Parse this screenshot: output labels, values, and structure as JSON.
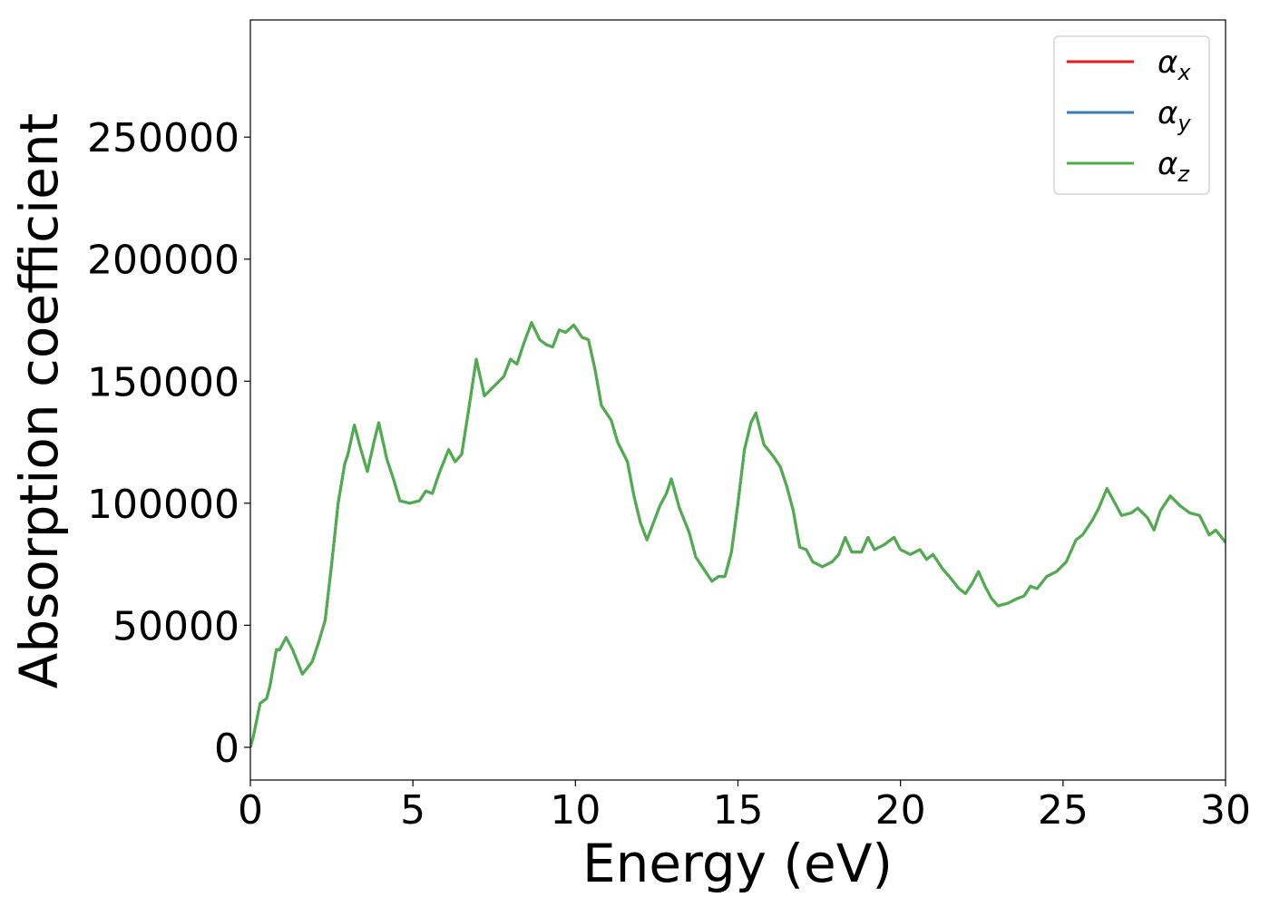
{
  "chart_data": {
    "type": "line",
    "xlabel": "Energy (eV)",
    "ylabel": "Absorption coefficient",
    "x": [
      0,
      0.1,
      0.3,
      0.5,
      0.6,
      0.8,
      0.9,
      1.1,
      1.3,
      1.6,
      1.9,
      2.1,
      2.3,
      2.5,
      2.7,
      2.9,
      3.0,
      3.2,
      3.4,
      3.6,
      3.8,
      3.95,
      4.2,
      4.4,
      4.6,
      4.9,
      5.2,
      5.4,
      5.6,
      5.8,
      6.1,
      6.3,
      6.5,
      6.7,
      6.95,
      7.2,
      7.5,
      7.8,
      8.0,
      8.2,
      8.4,
      8.65,
      8.9,
      9.1,
      9.3,
      9.5,
      9.7,
      9.95,
      10.2,
      10.4,
      10.6,
      10.8,
      11.1,
      11.3,
      11.6,
      11.8,
      12.0,
      12.2,
      12.4,
      12.6,
      12.8,
      12.95,
      13.2,
      13.5,
      13.7,
      13.95,
      14.2,
      14.4,
      14.6,
      14.8,
      15.0,
      15.2,
      15.4,
      15.55,
      15.8,
      16.1,
      16.3,
      16.5,
      16.7,
      16.9,
      17.1,
      17.3,
      17.6,
      17.9,
      18.1,
      18.3,
      18.5,
      18.8,
      19.0,
      19.2,
      19.5,
      19.8,
      20.0,
      20.3,
      20.6,
      20.8,
      21.0,
      21.3,
      21.5,
      21.8,
      22.0,
      22.2,
      22.4,
      22.6,
      22.8,
      23.0,
      23.3,
      23.6,
      23.8,
      24.0,
      24.2,
      24.5,
      24.8,
      25.1,
      25.4,
      25.6,
      25.9,
      26.1,
      26.35,
      26.6,
      26.8,
      27.1,
      27.3,
      27.6,
      27.8,
      28.0,
      28.3,
      28.6,
      28.9,
      29.2,
      29.5,
      29.7,
      30
    ],
    "series": [
      {
        "name": "αx",
        "color": "#e41a1c",
        "values": [
          0,
          5000,
          18000,
          20000,
          25000,
          40000,
          40000,
          45000,
          40000,
          30000,
          35000,
          43000,
          52000,
          75000,
          100000,
          116000,
          120000,
          132000,
          122000,
          113000,
          125000,
          133000,
          118000,
          110000,
          101000,
          100000,
          101000,
          105000,
          104000,
          112000,
          122000,
          117000,
          120000,
          137000,
          159000,
          144000,
          148000,
          152000,
          159000,
          157000,
          165000,
          174000,
          167000,
          165000,
          164000,
          171000,
          170000,
          173000,
          168000,
          167000,
          155000,
          140000,
          134000,
          125000,
          117000,
          103000,
          92000,
          85000,
          92000,
          99000,
          104000,
          110000,
          98000,
          88000,
          78000,
          73000,
          68000,
          70000,
          70000,
          80000,
          100000,
          122000,
          133000,
          137000,
          124000,
          119000,
          115000,
          107000,
          97000,
          82000,
          81000,
          76000,
          74000,
          76000,
          79000,
          86000,
          80000,
          80000,
          86000,
          81000,
          83000,
          86000,
          81000,
          79000,
          81000,
          77000,
          79000,
          73000,
          70000,
          65000,
          63000,
          67000,
          72000,
          66000,
          61000,
          58000,
          59000,
          61000,
          62000,
          66000,
          65000,
          70000,
          72000,
          76000,
          85000,
          87000,
          93000,
          98000,
          106000,
          100000,
          95000,
          96000,
          98000,
          94000,
          89000,
          97000,
          103000,
          99000,
          96000,
          95000,
          87000,
          89000,
          84000
        ]
      },
      {
        "name": "αy",
        "color": "#377eb8",
        "values": [
          0,
          5000,
          18000,
          20000,
          25000,
          40000,
          40000,
          45000,
          40000,
          30000,
          35000,
          43000,
          52000,
          75000,
          100000,
          116000,
          120000,
          132000,
          122000,
          113000,
          125000,
          133000,
          118000,
          110000,
          101000,
          100000,
          101000,
          105000,
          104000,
          112000,
          122000,
          117000,
          120000,
          137000,
          159000,
          144000,
          148000,
          152000,
          159000,
          157000,
          165000,
          174000,
          167000,
          165000,
          164000,
          171000,
          170000,
          173000,
          168000,
          167000,
          155000,
          140000,
          134000,
          125000,
          117000,
          103000,
          92000,
          85000,
          92000,
          99000,
          104000,
          110000,
          98000,
          88000,
          78000,
          73000,
          68000,
          70000,
          70000,
          80000,
          100000,
          122000,
          133000,
          137000,
          124000,
          119000,
          115000,
          107000,
          97000,
          82000,
          81000,
          76000,
          74000,
          76000,
          79000,
          86000,
          80000,
          80000,
          86000,
          81000,
          83000,
          86000,
          81000,
          79000,
          81000,
          77000,
          79000,
          73000,
          70000,
          65000,
          63000,
          67000,
          72000,
          66000,
          61000,
          58000,
          59000,
          61000,
          62000,
          66000,
          65000,
          70000,
          72000,
          76000,
          85000,
          87000,
          93000,
          98000,
          106000,
          100000,
          95000,
          96000,
          98000,
          94000,
          89000,
          97000,
          103000,
          99000,
          96000,
          95000,
          87000,
          89000,
          84000
        ]
      },
      {
        "name": "αz",
        "color": "#4daf4a",
        "values": [
          0,
          5000,
          18000,
          20000,
          25000,
          40000,
          40000,
          45000,
          40000,
          30000,
          35000,
          43000,
          52000,
          75000,
          100000,
          116000,
          120000,
          132000,
          122000,
          113000,
          125000,
          133000,
          118000,
          110000,
          101000,
          100000,
          101000,
          105000,
          104000,
          112000,
          122000,
          117000,
          120000,
          137000,
          159000,
          144000,
          148000,
          152000,
          159000,
          157000,
          165000,
          174000,
          167000,
          165000,
          164000,
          171000,
          170000,
          173000,
          168000,
          167000,
          155000,
          140000,
          134000,
          125000,
          117000,
          103000,
          92000,
          85000,
          92000,
          99000,
          104000,
          110000,
          98000,
          88000,
          78000,
          73000,
          68000,
          70000,
          70000,
          80000,
          100000,
          122000,
          133000,
          137000,
          124000,
          119000,
          115000,
          107000,
          97000,
          82000,
          81000,
          76000,
          74000,
          76000,
          79000,
          86000,
          80000,
          80000,
          86000,
          81000,
          83000,
          86000,
          81000,
          79000,
          81000,
          77000,
          79000,
          73000,
          70000,
          65000,
          63000,
          67000,
          72000,
          66000,
          61000,
          58000,
          59000,
          61000,
          62000,
          66000,
          65000,
          70000,
          72000,
          76000,
          85000,
          87000,
          93000,
          98000,
          106000,
          100000,
          95000,
          96000,
          98000,
          94000,
          89000,
          97000,
          103000,
          99000,
          96000,
          95000,
          87000,
          89000,
          84000
        ]
      }
    ],
    "xlim": [
      0,
      30
    ],
    "xticks": [
      0,
      5,
      10,
      15,
      20,
      25,
      30
    ],
    "ylim": [
      -13400,
      298000
    ],
    "yticks": [
      0,
      50000,
      100000,
      150000,
      200000,
      250000
    ],
    "grid": false,
    "legend": "upper right"
  }
}
